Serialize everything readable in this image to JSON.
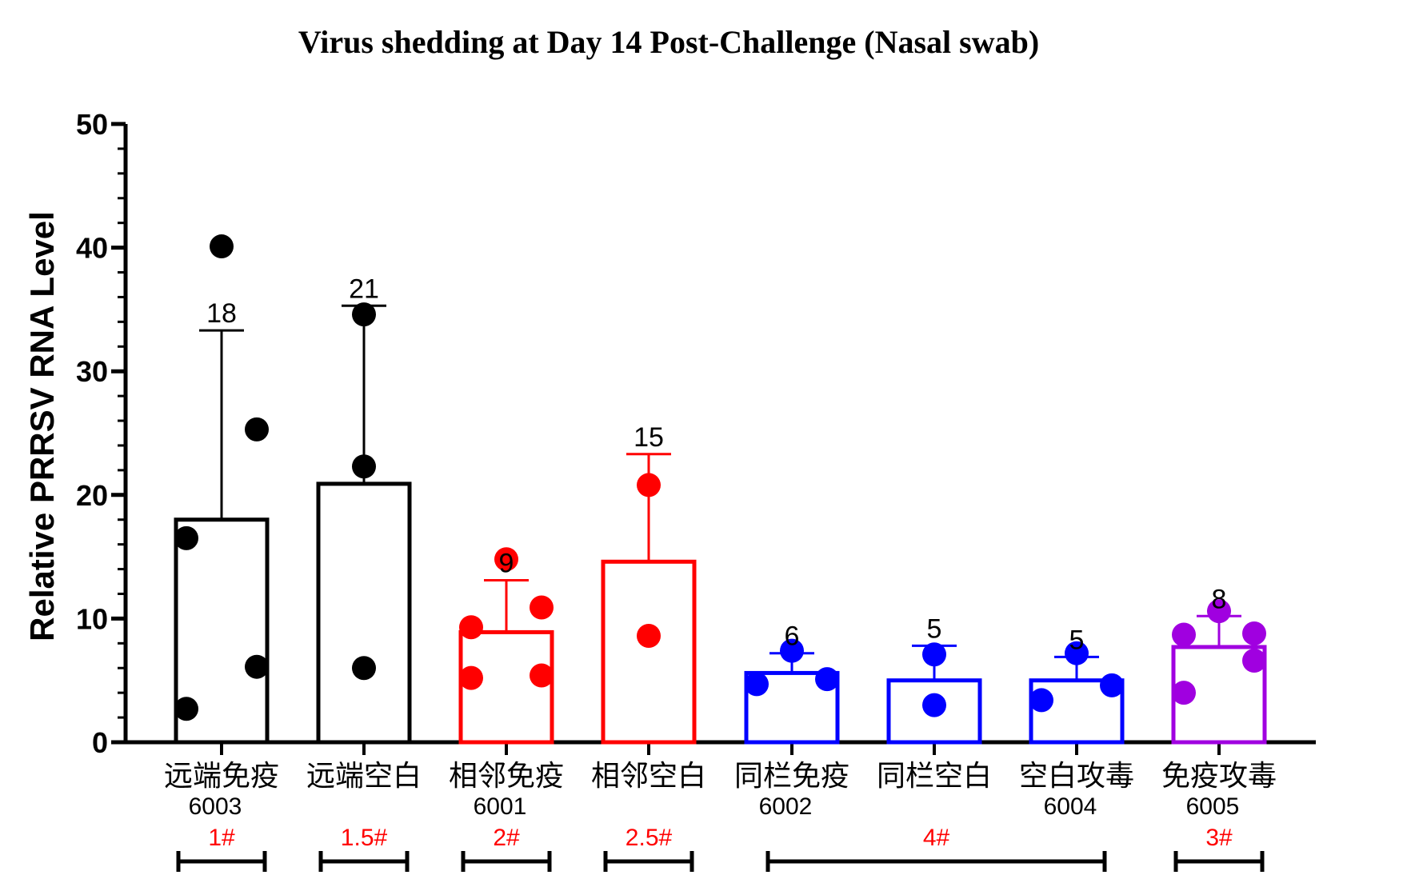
{
  "chart_data": {
    "type": "bar",
    "title": "Virus shedding at Day 14 Post-Challenge (Nasal swab)",
    "ylabel": "Relative PRRSV RNA Level",
    "ylim": [
      0,
      50
    ],
    "yticks": [
      "0",
      "10",
      "20",
      "30",
      "40",
      "50"
    ],
    "legend": "none",
    "categories": [
      {
        "label": "远端免疫",
        "code": "6003",
        "pen": "1#",
        "color": "#000000",
        "mean": 18,
        "mean_label": "18",
        "sd_top": 33.3,
        "points": [
          40.1,
          25.3,
          16.5,
          6.1,
          2.7
        ]
      },
      {
        "label": "远端空白",
        "code": "",
        "pen": "1.5#",
        "color": "#000000",
        "mean": 20.9,
        "mean_label": "21",
        "sd_top": 35.3,
        "points": [
          34.6,
          22.3,
          6.0
        ]
      },
      {
        "label": "相邻免疫",
        "code": "6001",
        "pen": "2#",
        "color": "#ff0000",
        "mean": 8.9,
        "mean_label": "9",
        "sd_top": 13.1,
        "points": [
          14.8,
          10.9,
          9.3,
          5.4,
          5.2
        ]
      },
      {
        "label": "相邻空白",
        "code": "",
        "pen": "2.5#",
        "color": "#ff0000",
        "mean": 14.6,
        "mean_label": "15",
        "sd_top": 23.3,
        "points": [
          20.8,
          8.6
        ]
      },
      {
        "label": "同栏免疫",
        "code": "6002",
        "pen": "",
        "color": "#0000ff",
        "mean": 5.6,
        "mean_label": "6",
        "sd_top": 7.2,
        "points": [
          7.4,
          5.1,
          4.7
        ]
      },
      {
        "label": "同栏空白",
        "code": "",
        "pen": "4#",
        "color": "#0000ff",
        "mean": 5.0,
        "mean_label": "5",
        "sd_top": 7.8,
        "points": [
          7.1,
          3.0
        ]
      },
      {
        "label": "空白攻毒",
        "code": "6004",
        "pen": "",
        "color": "#0000ff",
        "mean": 5.0,
        "mean_label": "5",
        "sd_top": 6.9,
        "points": [
          7.2,
          4.6,
          3.4
        ]
      },
      {
        "label": "免疫攻毒",
        "code": "6005",
        "pen": "3#",
        "color": "#a000e0",
        "mean": 7.7,
        "mean_label": "8",
        "sd_top": 10.2,
        "points": [
          10.6,
          8.8,
          8.7,
          6.6,
          4.0
        ]
      }
    ],
    "pen_groups": [
      {
        "from": 0,
        "to": 0
      },
      {
        "from": 1,
        "to": 1
      },
      {
        "from": 2,
        "to": 2
      },
      {
        "from": 3,
        "to": 3
      },
      {
        "from": 4,
        "to": 6
      },
      {
        "from": 7,
        "to": 7
      }
    ]
  }
}
